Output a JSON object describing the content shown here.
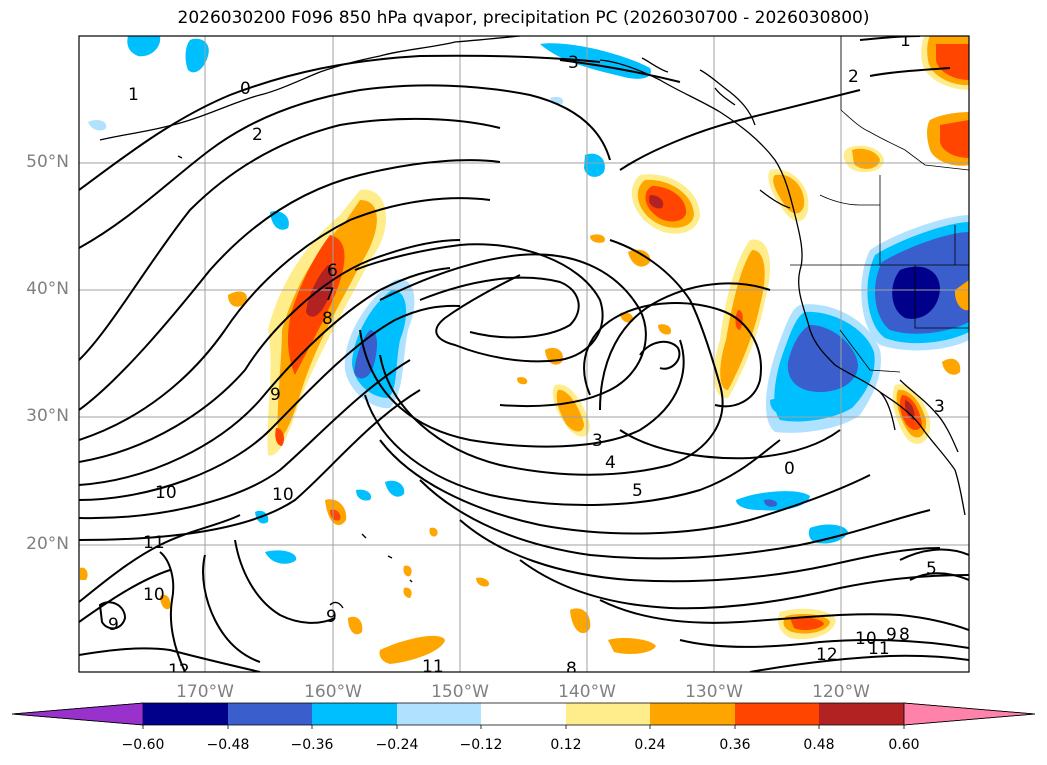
{
  "title": "2026030200 F096 850 hPa qvapor, precipitation PC (2026030700 - 2026030800)",
  "lat_labels": [
    "50°N",
    "40°N",
    "30°N",
    "20°N"
  ],
  "lon_labels": [
    "170°W",
    "160°W",
    "150°W",
    "140°W",
    "130°W",
    "120°W"
  ],
  "colorbar": {
    "ticks": [
      "−0.60",
      "−0.48",
      "−0.36",
      "−0.24",
      "−0.12",
      "0.12",
      "0.24",
      "0.36",
      "0.48",
      "0.60"
    ],
    "colors": [
      "#9932cc",
      "#00008b",
      "#3a5fcd",
      "#00bfff",
      "#b0e2ff",
      "#ffffff",
      "#ffec8b",
      "#ffa500",
      "#ff4500",
      "#b22222",
      "#ff82ab"
    ]
  },
  "contour_labels": [
    "1",
    "0",
    "2",
    "3",
    "2",
    "1",
    "6",
    "7",
    "8",
    "9",
    "10",
    "10",
    "11",
    "10",
    "9",
    "9",
    "3",
    "4",
    "5",
    "0",
    "3",
    "5",
    "8",
    "9",
    "10",
    "11",
    "12",
    "11",
    "12",
    "8"
  ]
}
